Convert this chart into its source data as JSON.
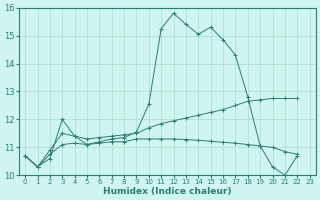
{
  "xlabel": "Humidex (Indice chaleur)",
  "bg_color": "#cff5f0",
  "line_color": "#2e7d6e",
  "grid_color": "#aaddcc",
  "xlim": [
    -0.5,
    23.5
  ],
  "ylim": [
    10,
    16
  ],
  "yticks": [
    10,
    11,
    12,
    13,
    14,
    15,
    16
  ],
  "xticks": [
    0,
    1,
    2,
    3,
    4,
    5,
    6,
    7,
    8,
    9,
    10,
    11,
    12,
    13,
    14,
    15,
    16,
    17,
    18,
    19,
    20,
    21,
    22,
    23
  ],
  "series1_x": [
    0,
    1,
    2,
    3,
    4,
    5,
    6,
    7,
    8,
    9,
    10,
    11,
    12,
    13,
    14,
    15,
    16,
    17,
    18,
    19,
    20,
    21,
    22
  ],
  "series1_y": [
    10.7,
    10.3,
    10.6,
    12.0,
    11.4,
    11.1,
    11.2,
    11.3,
    11.35,
    11.55,
    12.55,
    15.25,
    15.8,
    15.4,
    15.05,
    15.3,
    14.85,
    14.3,
    12.8,
    11.05,
    10.3,
    10.0,
    10.7
  ],
  "series2_x": [
    0,
    1,
    2,
    3,
    4,
    5,
    6,
    7,
    8,
    9,
    10,
    11,
    12,
    13,
    14,
    15,
    16,
    17,
    18,
    19,
    20,
    21,
    22
  ],
  "series2_y": [
    10.7,
    10.3,
    10.9,
    11.5,
    11.4,
    11.3,
    11.35,
    11.4,
    11.45,
    11.5,
    11.7,
    11.85,
    11.95,
    12.05,
    12.15,
    12.25,
    12.35,
    12.5,
    12.65,
    12.7,
    12.75,
    12.75,
    12.75
  ],
  "series3_x": [
    0,
    1,
    2,
    3,
    4,
    5,
    6,
    7,
    8,
    9,
    10,
    11,
    12,
    13,
    14,
    15,
    16,
    17,
    18,
    19,
    20,
    21,
    22
  ],
  "series3_y": [
    10.7,
    10.3,
    10.75,
    11.1,
    11.15,
    11.1,
    11.15,
    11.2,
    11.2,
    11.3,
    11.3,
    11.3,
    11.3,
    11.28,
    11.25,
    11.22,
    11.18,
    11.15,
    11.1,
    11.05,
    11.0,
    10.85,
    10.75
  ]
}
